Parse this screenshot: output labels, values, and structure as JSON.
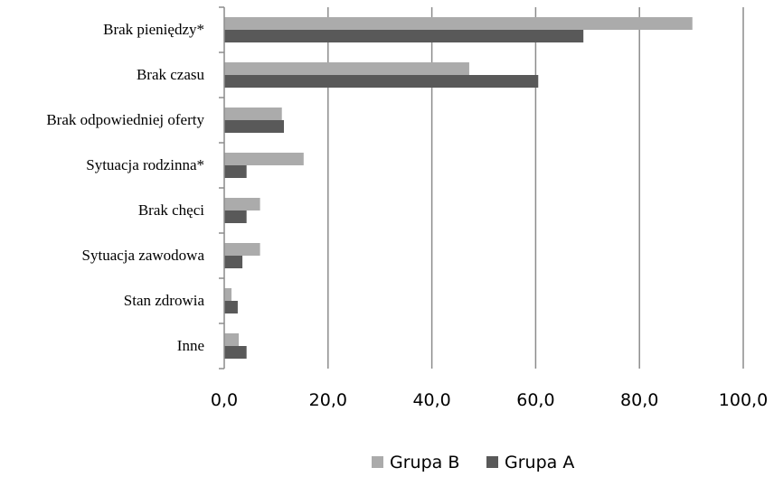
{
  "chart_data": {
    "type": "bar",
    "orientation": "horizontal",
    "categories": [
      "Brak pieniędzy*",
      "Brak czasu",
      "Brak odpowiedniej oferty",
      "Sytuacja rodzinna*",
      "Brak chęci",
      "Sytuacja zawodowa",
      "Stan zdrowia",
      "Inne"
    ],
    "series": [
      {
        "name": "Grupa B",
        "color": "#ababab",
        "values": [
          90.2,
          47.2,
          11.1,
          15.3,
          6.9,
          6.9,
          1.4,
          2.8
        ]
      },
      {
        "name": "Grupa A",
        "color": "#595959",
        "values": [
          69.2,
          60.5,
          11.5,
          4.3,
          4.3,
          3.5,
          2.6,
          4.3
        ]
      }
    ],
    "x_ticks": [
      "0,0",
      "20,0",
      "40,0",
      "60,0",
      "80,0",
      "100,0"
    ],
    "xlim": [
      0,
      100
    ],
    "grid": "vertical",
    "legend_position": "bottom-center",
    "legend_order": [
      "Grupa B",
      "Grupa A"
    ]
  }
}
